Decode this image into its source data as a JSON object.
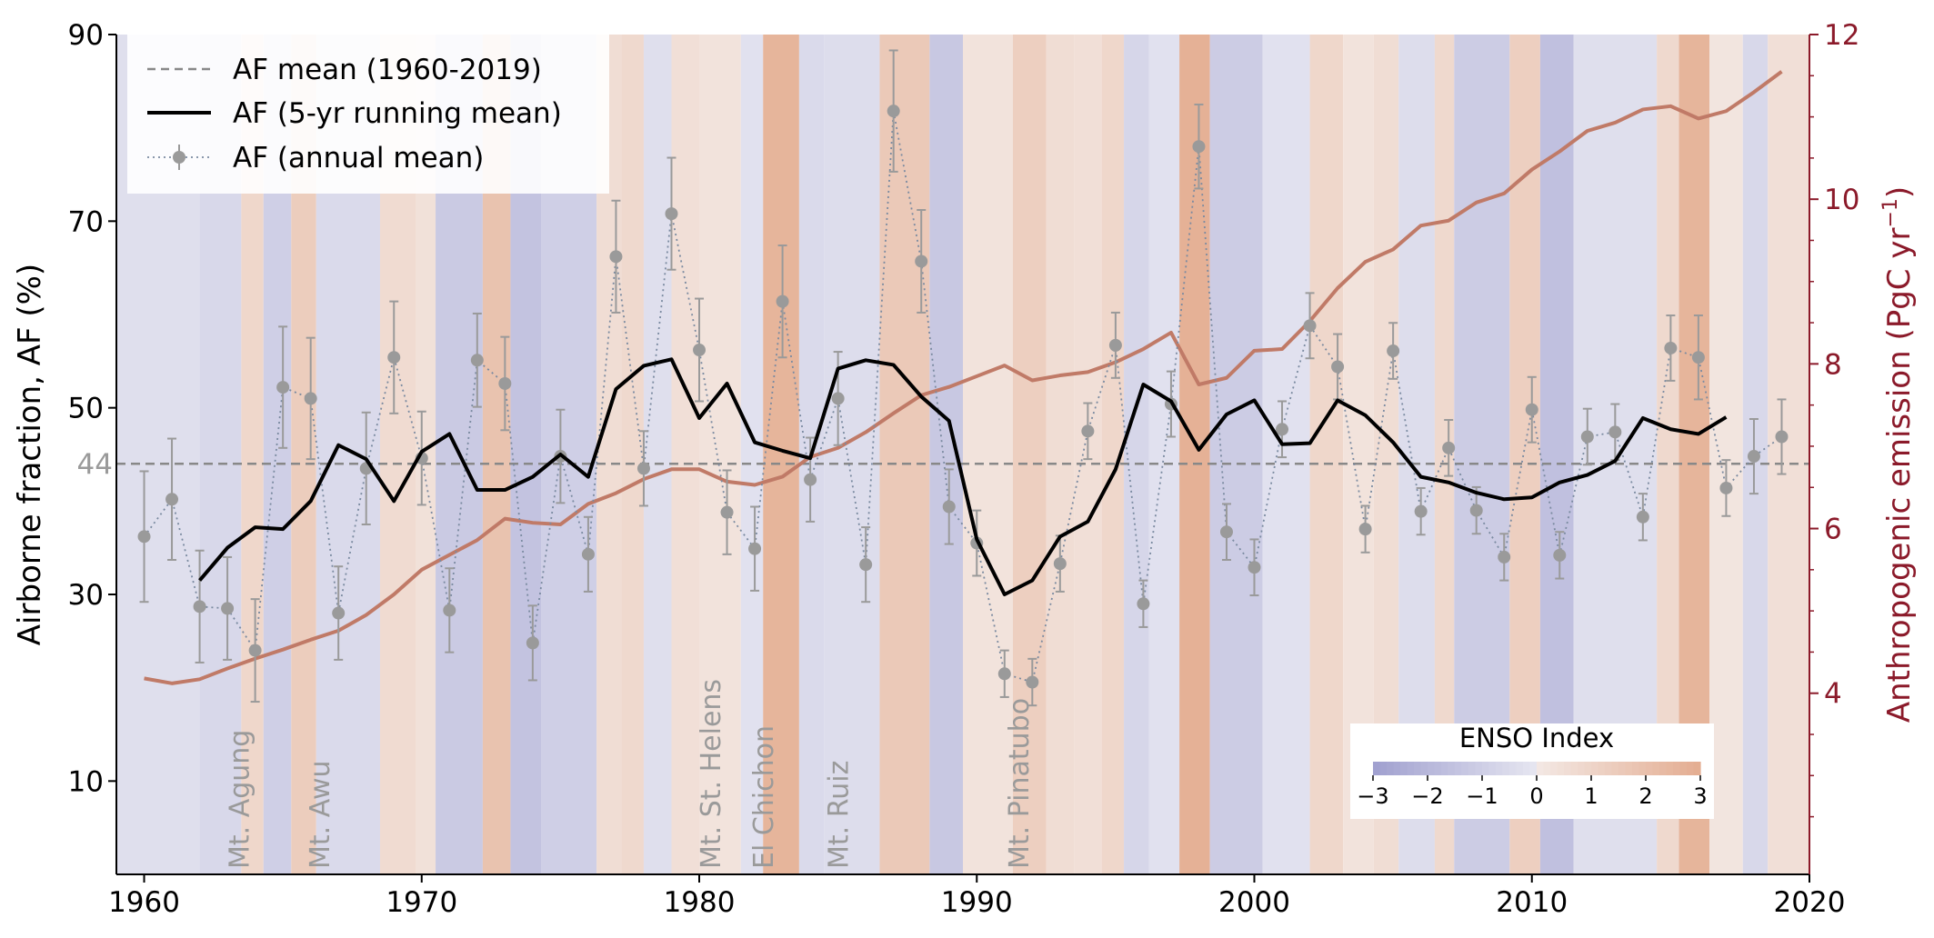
{
  "chart_data": {
    "type": "line",
    "x_axis": {
      "range": [
        1959,
        2020
      ],
      "ticks": [
        1960,
        1970,
        1980,
        1990,
        2000,
        2010,
        2020
      ],
      "tick_labels": [
        "1960",
        "1970",
        "1980",
        "1990",
        "2000",
        "2010",
        "2020"
      ]
    },
    "y_axis_left": {
      "label": "Airborne fraction, AF (%)",
      "range": [
        0,
        90
      ],
      "ticks": [
        10,
        30,
        50,
        70,
        90
      ],
      "tick_labels": [
        "10",
        "30",
        "50",
        "70",
        "90"
      ],
      "extra_tick": {
        "value": 44,
        "label": "44"
      }
    },
    "y_axis_right": {
      "label_main": "Anthropogenic emission (PgC yr",
      "label_sup": "−1",
      "label_close": ")",
      "color": "#8b1a2a",
      "range": [
        1.8,
        12
      ],
      "ticks": [
        4,
        6,
        8,
        10,
        12
      ],
      "tick_labels": [
        "4",
        "6",
        "8",
        "10",
        "12"
      ]
    },
    "legend": {
      "placement": "top-left",
      "entries": [
        {
          "key": "mean",
          "label": "AF mean (1960-2019)"
        },
        {
          "key": "running",
          "label": "AF (5-yr running mean)"
        },
        {
          "key": "annual",
          "label": "AF (annual mean)"
        }
      ]
    },
    "af_mean": 44,
    "series": [
      {
        "key": "annual",
        "name": "AF (annual mean)",
        "color": "#9a9a9a",
        "x": [
          1960,
          1961,
          1962,
          1963,
          1964,
          1965,
          1966,
          1967,
          1968,
          1969,
          1970,
          1971,
          1972,
          1973,
          1974,
          1975,
          1976,
          1977,
          1978,
          1979,
          1980,
          1981,
          1982,
          1983,
          1984,
          1985,
          1986,
          1987,
          1988,
          1989,
          1990,
          1991,
          1992,
          1993,
          1994,
          1995,
          1996,
          1997,
          1998,
          1999,
          2000,
          2001,
          2002,
          2003,
          2004,
          2005,
          2006,
          2007,
          2008,
          2009,
          2010,
          2011,
          2012,
          2013,
          2014,
          2015,
          2016,
          2017,
          2018,
          2019
        ],
        "y": [
          36.2,
          40.2,
          28.7,
          28.5,
          24.0,
          52.2,
          51.0,
          28.0,
          43.5,
          55.4,
          44.6,
          28.3,
          55.1,
          52.6,
          24.8,
          44.8,
          34.3,
          66.2,
          43.5,
          70.8,
          56.2,
          38.8,
          34.9,
          61.4,
          42.3,
          51.0,
          33.2,
          81.8,
          65.7,
          39.4,
          35.5,
          21.5,
          20.6,
          33.3,
          47.5,
          56.7,
          29.0,
          50.4,
          78.0,
          36.7,
          32.9,
          47.7,
          58.8,
          54.4,
          37.0,
          56.1,
          38.9,
          45.7,
          39.0,
          34.0,
          49.8,
          34.2,
          46.9,
          47.4,
          38.3,
          56.4,
          55.4,
          41.4,
          44.8,
          46.9
        ],
        "err": [
          7,
          6.5,
          6,
          5.5,
          5.5,
          6.5,
          6.5,
          5,
          6,
          6,
          5,
          4.5,
          5,
          5,
          4,
          5,
          4,
          6,
          4,
          6,
          5.5,
          4.5,
          4.5,
          6,
          4.5,
          5,
          4,
          6.5,
          5.5,
          4,
          3.5,
          2.5,
          2.5,
          3,
          3,
          3.5,
          2.5,
          3.5,
          4.5,
          3,
          3,
          3,
          3.5,
          3.5,
          2.5,
          3,
          2.5,
          3,
          2.5,
          2.5,
          3.5,
          2.5,
          3,
          3,
          2.5,
          3.5,
          4.5,
          3,
          4,
          4
        ]
      },
      {
        "key": "running",
        "name": "AF (5-yr running mean)",
        "color": "#000000",
        "x": [
          1962,
          1963,
          1964,
          1965,
          1966,
          1967,
          1968,
          1969,
          1970,
          1971,
          1972,
          1973,
          1974,
          1975,
          1976,
          1977,
          1978,
          1979,
          1980,
          1981,
          1982,
          1983,
          1984,
          1985,
          1986,
          1987,
          1988,
          1989,
          1990,
          1991,
          1992,
          1993,
          1994,
          1995,
          1996,
          1997,
          1998,
          1999,
          2000,
          2001,
          2002,
          2003,
          2004,
          2005,
          2006,
          2007,
          2008,
          2009,
          2010,
          2011,
          2012,
          2013,
          2014,
          2015,
          2016,
          2017
        ],
        "y": [
          31.5,
          35.0,
          37.2,
          37.0,
          40.0,
          46.0,
          44.5,
          40.0,
          45.3,
          47.2,
          41.2,
          41.2,
          42.6,
          45.0,
          42.6,
          52.0,
          54.5,
          55.2,
          48.9,
          52.6,
          46.3,
          45.4,
          44.6,
          54.2,
          55.1,
          54.6,
          51.2,
          48.6,
          35.9,
          30.0,
          31.5,
          36.2,
          37.8,
          43.4,
          52.5,
          50.7,
          45.5,
          49.3,
          50.8,
          46.1,
          46.2,
          50.8,
          49.2,
          46.3,
          42.6,
          42.0,
          40.9,
          40.2,
          40.4,
          42.0,
          42.8,
          44.3,
          48.9,
          47.7,
          47.2,
          49.0
        ]
      },
      {
        "key": "emission",
        "name": "Anthropogenic emission",
        "color": "#c07a67",
        "x": [
          1960,
          1961,
          1962,
          1963,
          1964,
          1965,
          1966,
          1967,
          1968,
          1969,
          1970,
          1971,
          1972,
          1973,
          1974,
          1975,
          1976,
          1977,
          1978,
          1979,
          1980,
          1981,
          1982,
          1983,
          1984,
          1985,
          1986,
          1987,
          1988,
          1989,
          1990,
          1991,
          1992,
          1993,
          1994,
          1995,
          1996,
          1997,
          1998,
          1999,
          2000,
          2001,
          2002,
          2003,
          2004,
          2005,
          2006,
          2007,
          2008,
          2009,
          2010,
          2011,
          2012,
          2013,
          2014,
          2015,
          2016,
          2017,
          2018,
          2019
        ],
        "y": [
          4.18,
          4.12,
          4.17,
          4.3,
          4.42,
          4.53,
          4.65,
          4.76,
          4.95,
          5.2,
          5.5,
          5.68,
          5.86,
          6.12,
          6.07,
          6.05,
          6.3,
          6.43,
          6.6,
          6.72,
          6.72,
          6.57,
          6.53,
          6.63,
          6.87,
          6.98,
          7.17,
          7.4,
          7.62,
          7.72,
          7.85,
          7.98,
          7.8,
          7.86,
          7.9,
          8.02,
          8.18,
          8.38,
          7.75,
          7.83,
          8.16,
          8.18,
          8.52,
          8.92,
          9.24,
          9.39,
          9.68,
          9.74,
          9.96,
          10.07,
          10.36,
          10.58,
          10.83,
          10.93,
          11.09,
          11.13,
          10.98,
          11.07,
          11.3,
          11.55
        ]
      }
    ],
    "volcanoes": [
      {
        "year": 1963.4,
        "label": "Mt. Agung"
      },
      {
        "year": 1966.3,
        "label": "Mt. Awu"
      },
      {
        "year": 1980.4,
        "label": "Mt. St. Helens"
      },
      {
        "year": 1982.3,
        "label": "El Chichon"
      },
      {
        "year": 1985.0,
        "label": "Mt. Ruiz"
      },
      {
        "year": 1991.5,
        "label": "Mt. Pinatubo"
      }
    ],
    "enso": {
      "title": "ENSO Index",
      "placement": "bottom-right",
      "ticks": [
        -3,
        -2,
        -1,
        0,
        1,
        2,
        3
      ],
      "tick_labels": [
        "−3",
        "−2",
        "−1",
        "0",
        "1",
        "2",
        "3"
      ],
      "negative_color": "#6a6ab5",
      "positive_color": "#d87f50",
      "monthly_values": [
        {
          "from": 1959.0,
          "to": 1962.0,
          "v": -0.3
        },
        {
          "from": 1962.0,
          "to": 1963.5,
          "v": -0.6
        },
        {
          "from": 1963.5,
          "to": 1964.3,
          "v": 0.9
        },
        {
          "from": 1964.3,
          "to": 1965.3,
          "v": -1.0
        },
        {
          "from": 1965.3,
          "to": 1966.2,
          "v": 1.4
        },
        {
          "from": 1966.2,
          "to": 1968.5,
          "v": -0.5
        },
        {
          "from": 1968.5,
          "to": 1969.8,
          "v": 0.7
        },
        {
          "from": 1969.8,
          "to": 1970.5,
          "v": 0.4
        },
        {
          "from": 1970.5,
          "to": 1972.2,
          "v": -1.2
        },
        {
          "from": 1972.2,
          "to": 1973.2,
          "v": 1.9
        },
        {
          "from": 1973.2,
          "to": 1974.3,
          "v": -1.5
        },
        {
          "from": 1974.3,
          "to": 1976.3,
          "v": -1.0
        },
        {
          "from": 1976.3,
          "to": 1977.2,
          "v": 0.6
        },
        {
          "from": 1977.2,
          "to": 1978.0,
          "v": 0.8
        },
        {
          "from": 1978.0,
          "to": 1979.0,
          "v": -0.3
        },
        {
          "from": 1979.0,
          "to": 1980.0,
          "v": 0.5
        },
        {
          "from": 1980.0,
          "to": 1981.5,
          "v": 0.3
        },
        {
          "from": 1981.5,
          "to": 1982.3,
          "v": -0.2
        },
        {
          "from": 1982.3,
          "to": 1983.6,
          "v": 2.6
        },
        {
          "from": 1983.6,
          "to": 1984.5,
          "v": -0.5
        },
        {
          "from": 1984.5,
          "to": 1986.5,
          "v": -0.4
        },
        {
          "from": 1986.5,
          "to": 1988.3,
          "v": 1.6
        },
        {
          "from": 1988.3,
          "to": 1989.5,
          "v": -1.3
        },
        {
          "from": 1989.5,
          "to": 1991.3,
          "v": 0.3
        },
        {
          "from": 1991.3,
          "to": 1992.5,
          "v": 1.3
        },
        {
          "from": 1992.5,
          "to": 1993.5,
          "v": 0.6
        },
        {
          "from": 1993.5,
          "to": 1994.5,
          "v": 0.5
        },
        {
          "from": 1994.5,
          "to": 1995.3,
          "v": 0.9
        },
        {
          "from": 1995.3,
          "to": 1996.2,
          "v": -0.7
        },
        {
          "from": 1996.2,
          "to": 1997.3,
          "v": -0.2
        },
        {
          "from": 1997.3,
          "to": 1998.4,
          "v": 2.8
        },
        {
          "from": 1998.4,
          "to": 2000.3,
          "v": -1.1
        },
        {
          "from": 2000.3,
          "to": 2002.0,
          "v": -0.2
        },
        {
          "from": 2002.0,
          "to": 2003.2,
          "v": 0.9
        },
        {
          "from": 2003.2,
          "to": 2004.3,
          "v": 0.3
        },
        {
          "from": 2004.3,
          "to": 2005.2,
          "v": 0.6
        },
        {
          "from": 2005.2,
          "to": 2006.5,
          "v": -0.4
        },
        {
          "from": 2006.5,
          "to": 2007.2,
          "v": 0.8
        },
        {
          "from": 2007.2,
          "to": 2009.2,
          "v": -1.1
        },
        {
          "from": 2009.2,
          "to": 2010.3,
          "v": 1.3
        },
        {
          "from": 2010.3,
          "to": 2011.5,
          "v": -1.6
        },
        {
          "from": 2011.5,
          "to": 2014.5,
          "v": -0.3
        },
        {
          "from": 2014.5,
          "to": 2015.3,
          "v": 0.8
        },
        {
          "from": 2015.3,
          "to": 2016.4,
          "v": 2.6
        },
        {
          "from": 2016.4,
          "to": 2017.6,
          "v": 0.2
        },
        {
          "from": 2017.6,
          "to": 2018.5,
          "v": -0.6
        },
        {
          "from": 2018.5,
          "to": 2020.0,
          "v": 0.5
        }
      ]
    }
  }
}
